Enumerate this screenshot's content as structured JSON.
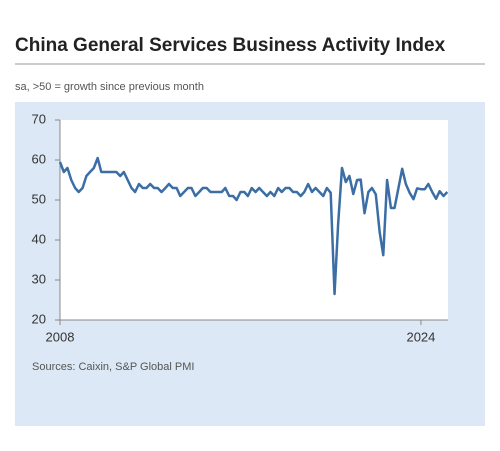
{
  "chart_data": {
    "type": "line",
    "title": "China General Services Business Activity Index",
    "subtitle": "sa, >50 = growth since previous month",
    "source": "Sources: Caixin, S&P Global PMI",
    "x": [
      2008,
      2008.17,
      2008.33,
      2008.5,
      2008.67,
      2008.83,
      2009,
      2009.17,
      2009.33,
      2009.5,
      2009.67,
      2009.83,
      2010,
      2010.17,
      2010.33,
      2010.5,
      2010.67,
      2010.83,
      2011,
      2011.17,
      2011.33,
      2011.5,
      2011.67,
      2011.83,
      2012,
      2012.17,
      2012.33,
      2012.5,
      2012.67,
      2012.83,
      2013,
      2013.17,
      2013.33,
      2013.5,
      2013.67,
      2013.83,
      2014,
      2014.17,
      2014.33,
      2014.5,
      2014.67,
      2014.83,
      2015,
      2015.17,
      2015.33,
      2015.5,
      2015.67,
      2015.83,
      2016,
      2016.17,
      2016.33,
      2016.5,
      2016.67,
      2016.83,
      2017,
      2017.17,
      2017.33,
      2017.5,
      2017.67,
      2017.83,
      2018,
      2018.17,
      2018.33,
      2018.5,
      2018.67,
      2018.83,
      2019,
      2019.17,
      2019.33,
      2019.5,
      2019.67,
      2019.83,
      2020,
      2020.17,
      2020.33,
      2020.5,
      2020.67,
      2020.83,
      2021,
      2021.17,
      2021.33,
      2021.5,
      2021.67,
      2021.83,
      2022,
      2022.17,
      2022.33,
      2022.5,
      2022.67,
      2022.83,
      2023,
      2023.17,
      2023.33,
      2023.5,
      2023.67,
      2023.83,
      2024,
      2024.17,
      2024.33,
      2024.5,
      2024.67,
      2024.83,
      2025,
      2025.17
    ],
    "series": [
      {
        "name": "China General Services Business Activity Index",
        "color": "#3a6ea5",
        "values": [
          59.5,
          57,
          58,
          55,
          53,
          52,
          53,
          56,
          57,
          58,
          60.5,
          57,
          57,
          57,
          57,
          57,
          56,
          57,
          55,
          53,
          52,
          54,
          53,
          53,
          54,
          53,
          53,
          52,
          53,
          54,
          53,
          53,
          51,
          52,
          53,
          53,
          51,
          52,
          53,
          53,
          52,
          52,
          52,
          52,
          53,
          51,
          51,
          50,
          52,
          52,
          51,
          53,
          52,
          53,
          52,
          51,
          52,
          51,
          53,
          52,
          53,
          53,
          52,
          52,
          51,
          52,
          54,
          52,
          53,
          52,
          51,
          53,
          51.8,
          26.5,
          44,
          58,
          54.5,
          56,
          51.5,
          55,
          55.1,
          46.7,
          52,
          53,
          51.4,
          42,
          36.2,
          55,
          48,
          48,
          52.9,
          57.8,
          54,
          51.8,
          50.2,
          52.9,
          52.7,
          52.7,
          54,
          52,
          50.3,
          52.2,
          51,
          52
        ]
      }
    ],
    "xlim": [
      2008,
      2025.2
    ],
    "xticks": [
      2008,
      2024
    ],
    "ylim": [
      20,
      70
    ],
    "yticks": [
      20,
      30,
      40,
      50,
      60,
      70
    ],
    "grid": false
  }
}
